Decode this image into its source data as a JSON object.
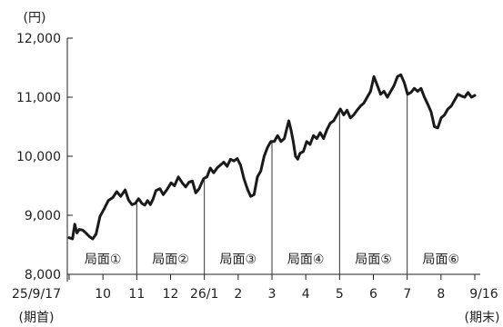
{
  "chart_data": {
    "type": "line",
    "y_unit": "(円)",
    "ylim": [
      8000,
      12000
    ],
    "y_ticks": [
      {
        "value": 8000,
        "label": "8,000"
      },
      {
        "value": 9000,
        "label": "9,000"
      },
      {
        "value": 10000,
        "label": "10,000"
      },
      {
        "value": 11000,
        "label": "11,000"
      },
      {
        "value": 12000,
        "label": "12,000"
      }
    ],
    "x_ticks": [
      {
        "label": "25/9/17",
        "sub": "(期首)"
      },
      {
        "label": "10"
      },
      {
        "label": "11"
      },
      {
        "label": "12"
      },
      {
        "label": "26/1"
      },
      {
        "label": "2"
      },
      {
        "label": "3"
      },
      {
        "label": "4"
      },
      {
        "label": "5"
      },
      {
        "label": "6"
      },
      {
        "label": "7"
      },
      {
        "label": "8"
      },
      {
        "label": "9/16",
        "sub": "(期末)"
      }
    ],
    "phases": [
      {
        "label": "局面①",
        "end_tick": 2
      },
      {
        "label": "局面②",
        "end_tick": 4
      },
      {
        "label": "局面③",
        "end_tick": 6
      },
      {
        "label": "局面④",
        "end_tick": 8
      },
      {
        "label": "局面⑤",
        "end_tick": 10
      },
      {
        "label": "局面⑥",
        "end_tick": 12
      }
    ],
    "series": [
      {
        "color": "#1a1a1a",
        "points": [
          [
            0.0,
            8620
          ],
          [
            0.06,
            8600
          ],
          [
            0.1,
            8850
          ],
          [
            0.14,
            8700
          ],
          [
            0.18,
            8760
          ],
          [
            0.24,
            8750
          ],
          [
            0.3,
            8700
          ],
          [
            0.36,
            8640
          ],
          [
            0.42,
            8600
          ],
          [
            0.48,
            8680
          ],
          [
            0.55,
            8980
          ],
          [
            0.62,
            9100
          ],
          [
            0.7,
            9250
          ],
          [
            0.78,
            9300
          ],
          [
            0.85,
            9400
          ],
          [
            0.92,
            9320
          ],
          [
            1.0,
            9430
          ],
          [
            1.06,
            9260
          ],
          [
            1.12,
            9180
          ],
          [
            1.18,
            9200
          ],
          [
            1.24,
            9280
          ],
          [
            1.3,
            9200
          ],
          [
            1.35,
            9170
          ],
          [
            1.4,
            9250
          ],
          [
            1.45,
            9180
          ],
          [
            1.5,
            9280
          ],
          [
            1.55,
            9420
          ],
          [
            1.62,
            9450
          ],
          [
            1.68,
            9350
          ],
          [
            1.75,
            9440
          ],
          [
            1.82,
            9550
          ],
          [
            1.88,
            9500
          ],
          [
            1.95,
            9650
          ],
          [
            2.02,
            9550
          ],
          [
            2.08,
            9480
          ],
          [
            2.14,
            9560
          ],
          [
            2.2,
            9580
          ],
          [
            2.26,
            9380
          ],
          [
            2.32,
            9450
          ],
          [
            2.4,
            9620
          ],
          [
            2.46,
            9650
          ],
          [
            2.52,
            9800
          ],
          [
            2.58,
            9720
          ],
          [
            2.64,
            9800
          ],
          [
            2.7,
            9850
          ],
          [
            2.76,
            9900
          ],
          [
            2.82,
            9830
          ],
          [
            2.88,
            9950
          ],
          [
            2.94,
            9920
          ],
          [
            3.0,
            9960
          ],
          [
            3.06,
            9850
          ],
          [
            3.12,
            9620
          ],
          [
            3.18,
            9450
          ],
          [
            3.24,
            9320
          ],
          [
            3.3,
            9350
          ],
          [
            3.36,
            9650
          ],
          [
            3.42,
            9750
          ],
          [
            3.48,
            10000
          ],
          [
            3.54,
            10150
          ],
          [
            3.6,
            10250
          ],
          [
            3.66,
            10250
          ],
          [
            3.72,
            10350
          ],
          [
            3.78,
            10250
          ],
          [
            3.84,
            10300
          ],
          [
            3.88,
            10450
          ],
          [
            3.92,
            10600
          ],
          [
            3.96,
            10450
          ],
          [
            4.0,
            10250
          ],
          [
            4.04,
            10000
          ],
          [
            4.08,
            9950
          ],
          [
            4.12,
            10050
          ],
          [
            4.18,
            10080
          ],
          [
            4.24,
            10250
          ],
          [
            4.3,
            10200
          ],
          [
            4.36,
            10350
          ],
          [
            4.42,
            10300
          ],
          [
            4.48,
            10400
          ],
          [
            4.54,
            10300
          ],
          [
            4.6,
            10450
          ],
          [
            4.66,
            10560
          ],
          [
            4.72,
            10600
          ],
          [
            4.78,
            10700
          ],
          [
            4.84,
            10800
          ],
          [
            4.9,
            10700
          ],
          [
            4.96,
            10780
          ],
          [
            5.02,
            10650
          ],
          [
            5.08,
            10700
          ],
          [
            5.14,
            10780
          ],
          [
            5.2,
            10850
          ],
          [
            5.26,
            10900
          ],
          [
            5.32,
            11000
          ],
          [
            5.38,
            11100
          ],
          [
            5.44,
            11350
          ],
          [
            5.5,
            11200
          ],
          [
            5.56,
            11050
          ],
          [
            5.62,
            11100
          ],
          [
            5.68,
            11000
          ],
          [
            5.74,
            11100
          ],
          [
            5.8,
            11200
          ],
          [
            5.86,
            11350
          ],
          [
            5.92,
            11380
          ],
          [
            5.98,
            11250
          ],
          [
            6.04,
            11050
          ],
          [
            6.1,
            11080
          ],
          [
            6.16,
            11150
          ],
          [
            6.22,
            11100
          ],
          [
            6.28,
            11150
          ],
          [
            6.34,
            11000
          ],
          [
            6.4,
            10880
          ],
          [
            6.46,
            10750
          ],
          [
            6.52,
            10500
          ],
          [
            6.58,
            10480
          ],
          [
            6.64,
            10650
          ],
          [
            6.7,
            10700
          ],
          [
            6.76,
            10800
          ],
          [
            6.82,
            10850
          ],
          [
            6.88,
            10950
          ],
          [
            6.94,
            11050
          ],
          [
            7.0,
            11020
          ],
          [
            7.06,
            11000
          ],
          [
            7.12,
            11080
          ],
          [
            7.18,
            11000
          ],
          [
            7.24,
            11030
          ]
        ]
      }
    ],
    "grid": false,
    "legend": "none"
  }
}
